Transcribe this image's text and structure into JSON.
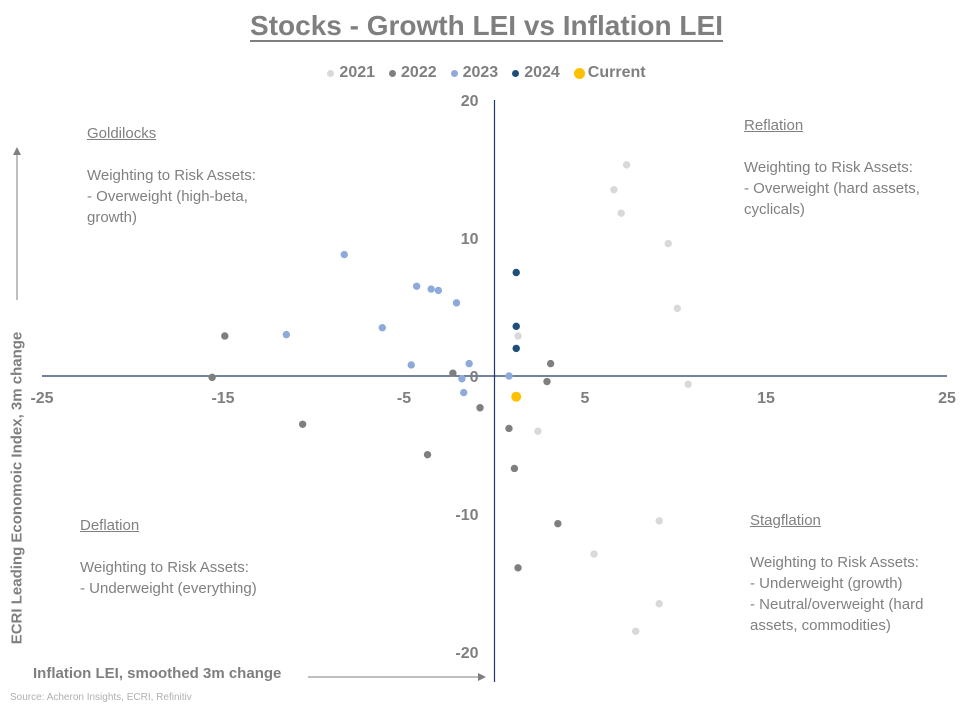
{
  "chart_data": {
    "type": "scatter",
    "title": "Stocks - Growth LEI vs Inflation LEI",
    "xlabel": "Inflation LEI, smoothed 3m change",
    "ylabel": "ECRI Leading Economoic Index, 3m change",
    "xlim": [
      -25,
      25
    ],
    "ylim": [
      -20,
      20
    ],
    "xticks": [
      -25,
      -15,
      -5,
      5,
      15,
      25
    ],
    "yticks": [
      20,
      10,
      0,
      -10,
      -20
    ],
    "grid": false,
    "legend_position": "top",
    "series": [
      {
        "name": "2021",
        "color": "#d9d9d9",
        "points": [
          [
            7.3,
            15.3
          ],
          [
            6.6,
            13.5
          ],
          [
            7.0,
            11.8
          ],
          [
            9.6,
            9.6
          ],
          [
            10.1,
            4.9
          ],
          [
            1.3,
            2.9
          ],
          [
            10.7,
            -0.6
          ],
          [
            2.4,
            -4.0
          ],
          [
            9.1,
            -10.5
          ],
          [
            5.5,
            -12.9
          ],
          [
            9.1,
            -16.5
          ],
          [
            7.8,
            -18.5
          ]
        ]
      },
      {
        "name": "2022",
        "color": "#7f7f7f",
        "points": [
          [
            -14.9,
            2.9
          ],
          [
            -15.6,
            -0.1
          ],
          [
            -10.6,
            -3.5
          ],
          [
            -3.7,
            -5.7
          ],
          [
            -2.3,
            0.2
          ],
          [
            -0.8,
            -2.3
          ],
          [
            0.8,
            -3.8
          ],
          [
            1.1,
            -6.7
          ],
          [
            2.9,
            -0.4
          ],
          [
            3.1,
            0.9
          ],
          [
            3.5,
            -10.7
          ],
          [
            1.3,
            -13.9
          ]
        ]
      },
      {
        "name": "2023",
        "color": "#8eaadb",
        "points": [
          [
            -8.3,
            8.8
          ],
          [
            -11.5,
            3.0
          ],
          [
            -6.2,
            3.5
          ],
          [
            -4.3,
            6.5
          ],
          [
            -3.5,
            6.3
          ],
          [
            -3.1,
            6.2
          ],
          [
            -2.1,
            5.3
          ],
          [
            -4.6,
            0.8
          ],
          [
            -1.4,
            0.9
          ],
          [
            -1.8,
            -0.2
          ],
          [
            -1.7,
            -1.2
          ],
          [
            0.8,
            0.0
          ]
        ]
      },
      {
        "name": "2024",
        "color": "#1f4e79",
        "points": [
          [
            1.2,
            7.5
          ],
          [
            1.2,
            3.6
          ],
          [
            1.2,
            2.0
          ]
        ]
      },
      {
        "name": "Current",
        "color": "#ffc000",
        "points": [
          [
            1.2,
            -1.5
          ]
        ]
      }
    ],
    "annotations": {
      "goldilocks": [
        "Goldilocks",
        "Weighting to Risk Assets:",
        "- Overweight (high-beta,",
        "growth)"
      ],
      "reflation": [
        "Reflation",
        "Weighting to Risk Assets:",
        "- Overweight (hard assets,",
        "cyclicals)"
      ],
      "deflation": [
        "Deflation",
        "Weighting to Risk Assets:",
        "- Underweight (everything)"
      ],
      "stagflation": [
        "Stagflation",
        "Weighting to Risk Assets:",
        "- Underweight (growth)",
        "- Neutral/overweight (hard",
        "assets, commodities)"
      ]
    },
    "source": "Source: Acheron Insights, ECRI, Refinitiv"
  }
}
